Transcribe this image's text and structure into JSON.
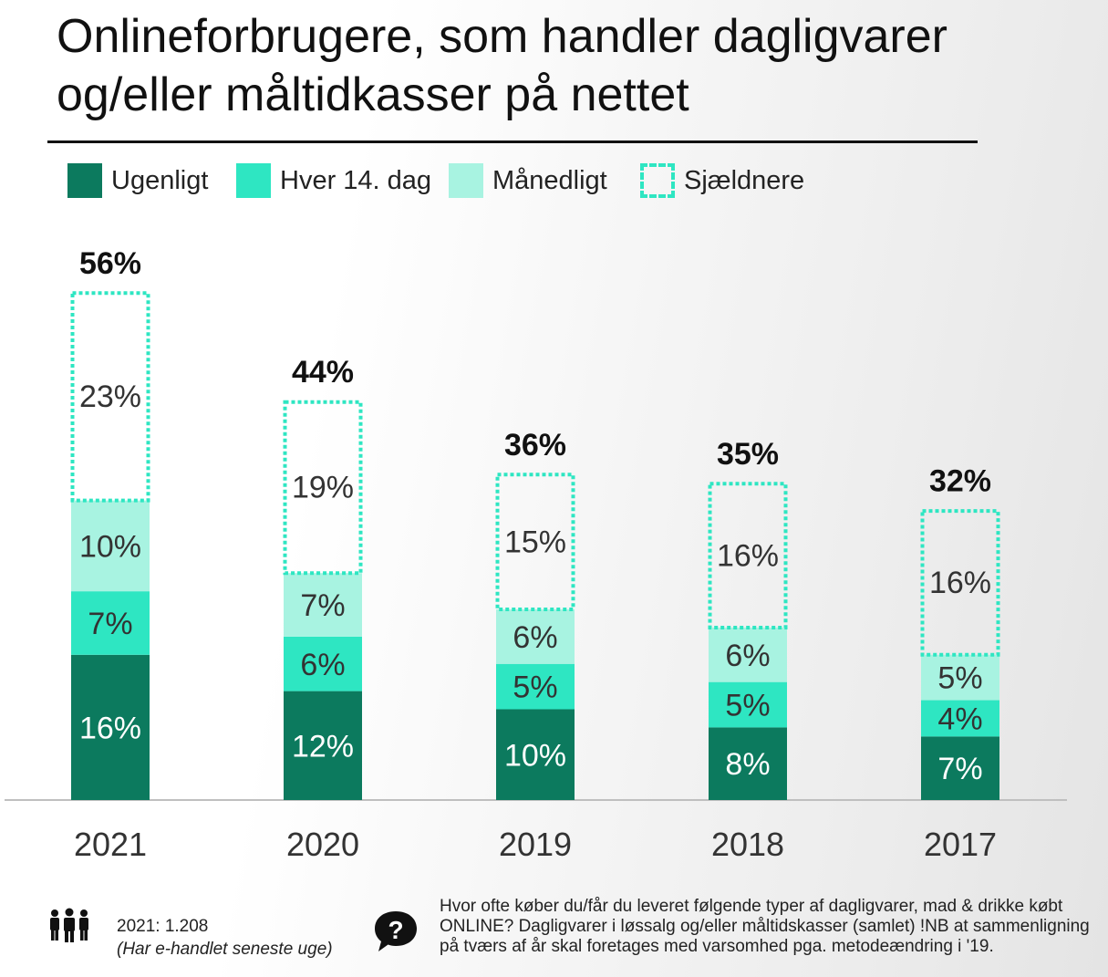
{
  "title": {
    "line1": "Onlineforbrugere, som handler dagligvarer",
    "line2": "og/eller måltidkasser på nettet"
  },
  "legend": [
    {
      "label": "Ugenligt",
      "color": "#0c7a5e",
      "style": "solid"
    },
    {
      "label": "Hver 14. dag",
      "color": "#2ee6c2",
      "style": "solid"
    },
    {
      "label": "Månedligt",
      "color": "#a8f3e1",
      "style": "solid"
    },
    {
      "label": "Sjældnere",
      "color": "#2ee6c2",
      "style": "dashed"
    }
  ],
  "chart_data": {
    "type": "bar",
    "stacked": true,
    "categories": [
      "2021",
      "2020",
      "2019",
      "2018",
      "2017"
    ],
    "series": [
      {
        "name": "Ugenligt",
        "values": [
          16,
          12,
          10,
          8,
          7
        ],
        "color": "#0c7a5e"
      },
      {
        "name": "Hver 14. dag",
        "values": [
          7,
          6,
          5,
          5,
          4
        ],
        "color": "#2ee6c2"
      },
      {
        "name": "Månedligt",
        "values": [
          10,
          7,
          6,
          6,
          5
        ],
        "color": "#a8f3e1"
      },
      {
        "name": "Sjældnere",
        "values": [
          23,
          19,
          15,
          16,
          16
        ],
        "color": "#2ee6c2",
        "style": "dashed"
      }
    ],
    "totals": [
      "56%",
      "44%",
      "36%",
      "35%",
      "32%"
    ],
    "value_suffix": "%",
    "grid": false,
    "legend_position": "top-left"
  },
  "footer": {
    "sample": "2021: 1.208",
    "sample_note": "(Har e-handlet seneste uge)",
    "question": "Hvor ofte køber du/får du leveret følgende typer af dagligvarer, mad & drikke købt ONLINE? Dagligvarer i løssalg og/eller måltidskasser (samlet) !NB at sammenligning på tværs af år skal foretages med varsomhed pga. metodeændring i '19.",
    "people_icon": "people-icon",
    "question_icon": "question-icon"
  }
}
